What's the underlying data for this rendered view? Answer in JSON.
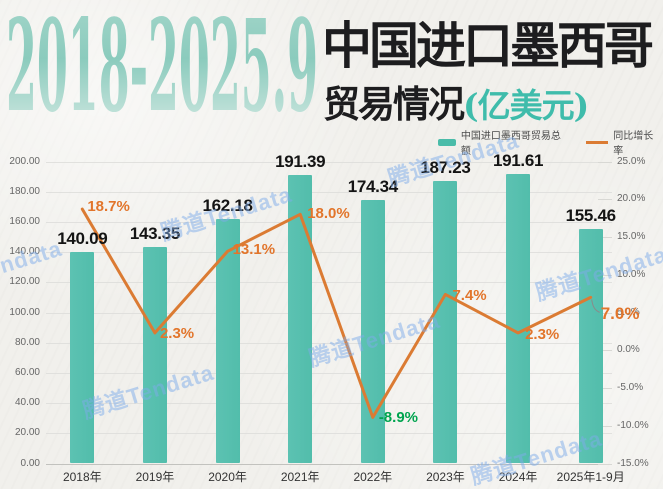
{
  "header": {
    "years": "2018-2025.9",
    "title_main": "中国进口墨西哥",
    "title_sub": "贸易情况",
    "title_unit": "(亿美元)"
  },
  "legend": [
    {
      "label": "中国进口墨西哥贸易总额",
      "type": "bar",
      "color": "#4abca9"
    },
    {
      "label": "同比增长率",
      "type": "line",
      "color": "#db7b33"
    }
  ],
  "watermark": {
    "text": "腾道Tendata"
  },
  "colors": {
    "bar": "#52bdab",
    "line": "#db7b33",
    "pct_positive": "#e2752b",
    "pct_negative": "#00a44f",
    "value_label": "#141414",
    "title_teal": "#3fbcab"
  },
  "chart_data": {
    "type": "bar",
    "subtype": "bar+line dual-axis combo",
    "categories": [
      "2018年",
      "2019年",
      "2020年",
      "2021年",
      "2022年",
      "2023年",
      "2024年",
      "2025年1-9月"
    ],
    "series": [
      {
        "name": "中国进口墨西哥贸易总额",
        "type": "bar",
        "axis": "left",
        "values": [
          140.09,
          143.35,
          162.18,
          191.39,
          174.34,
          187.23,
          191.61,
          155.46
        ]
      },
      {
        "name": "同比增长率",
        "type": "line",
        "axis": "right",
        "values": [
          18.7,
          2.3,
          13.1,
          18.0,
          -8.9,
          7.4,
          2.3,
          7.0
        ],
        "labels": [
          "18.7%",
          "2.3%",
          "13.1%",
          "18.0%",
          "-8.9%",
          "7.4%",
          "2.3%",
          "7.0%"
        ]
      }
    ],
    "left_axis": {
      "min": 0,
      "max": 200,
      "ticks": [
        "200.00",
        "180.00",
        "160.00",
        "140.00",
        "120.00",
        "100.00",
        "80.00",
        "60.00",
        "40.00",
        "20.00",
        "0.00"
      ]
    },
    "right_axis": {
      "min": -15,
      "max": 25,
      "ticks": [
        "25.0%",
        "20.0%",
        "15.0%",
        "10.0%",
        "5.0%",
        "0.0%",
        "-5.0%",
        "-10.0%",
        "-15.0%"
      ]
    },
    "grid": true,
    "legend_position": "top-right",
    "title": "2018-2025.9 中国进口墨西哥贸易情况(亿美元)"
  }
}
